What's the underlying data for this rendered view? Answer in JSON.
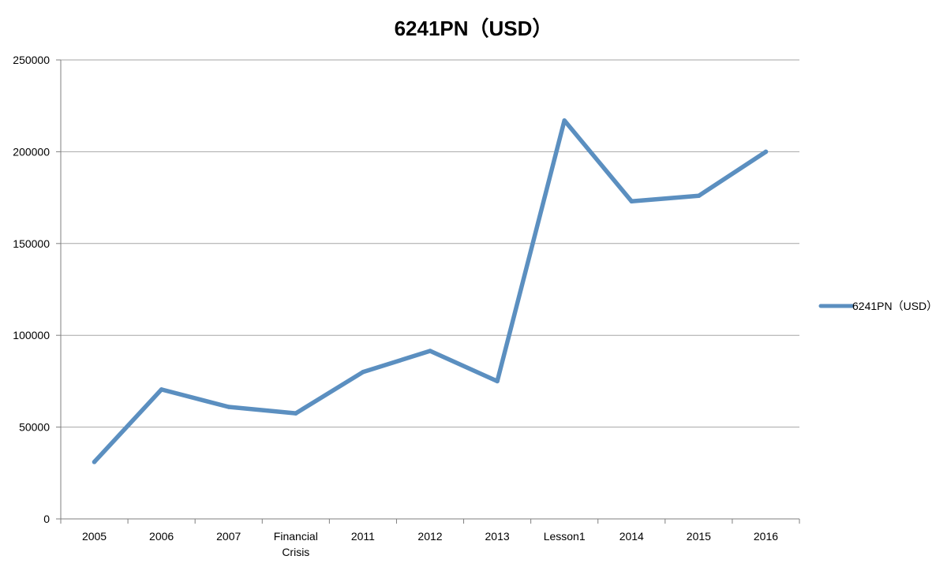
{
  "chart_data": {
    "type": "line",
    "title": "6241PN（USD）",
    "xlabel": "",
    "ylabel": "",
    "categories": [
      "2005",
      "2006",
      "2007",
      "Financial Crisis",
      "2011",
      "2012",
      "2013",
      "Lesson1",
      "2014",
      "2015",
      "2016"
    ],
    "series": [
      {
        "name": "6241PN（USD）",
        "color": "#5b8fc0",
        "values": [
          31000,
          70500,
          61000,
          57500,
          80000,
          91500,
          75000,
          217000,
          173000,
          176000,
          200000
        ]
      }
    ],
    "ylim": [
      0,
      250000
    ],
    "yticks": [
      0,
      50000,
      100000,
      150000,
      200000,
      250000
    ],
    "grid": true,
    "legend": "right"
  }
}
